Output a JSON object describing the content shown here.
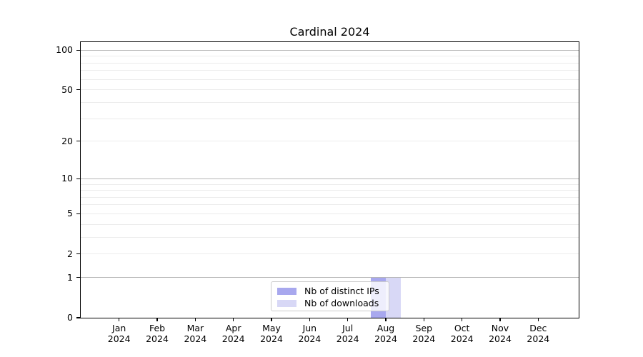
{
  "chart_data": {
    "type": "bar",
    "title": "Cardinal 2024",
    "xlabel": "",
    "ylabel": "",
    "yscale": "log1p",
    "ylim": [
      0,
      115
    ],
    "grid": "horizontal",
    "legend_position": "lower center",
    "ytick_labels": [
      0,
      1,
      2,
      5,
      10,
      20,
      50,
      100
    ],
    "ygrid_major": [
      1,
      10,
      100
    ],
    "ygrid_minor": [
      2,
      3,
      4,
      5,
      6,
      7,
      8,
      9,
      20,
      30,
      40,
      50,
      60,
      70,
      80,
      90
    ],
    "categories": [
      {
        "month": "Jan",
        "year": "2024"
      },
      {
        "month": "Feb",
        "year": "2024"
      },
      {
        "month": "Mar",
        "year": "2024"
      },
      {
        "month": "Apr",
        "year": "2024"
      },
      {
        "month": "May",
        "year": "2024"
      },
      {
        "month": "Jun",
        "year": "2024"
      },
      {
        "month": "Jul",
        "year": "2024"
      },
      {
        "month": "Aug",
        "year": "2024"
      },
      {
        "month": "Sep",
        "year": "2024"
      },
      {
        "month": "Oct",
        "year": "2024"
      },
      {
        "month": "Nov",
        "year": "2024"
      },
      {
        "month": "Dec",
        "year": "2024"
      }
    ],
    "series": [
      {
        "name": "Nb of distinct IPs",
        "color": "#a8a8ee",
        "values": [
          0,
          0,
          0,
          0,
          0,
          0,
          0,
          1,
          0,
          0,
          0,
          0
        ]
      },
      {
        "name": "Nb of downloads",
        "color": "#d8d8f6",
        "values": [
          0,
          0,
          0,
          0,
          0,
          0,
          0,
          1,
          0,
          0,
          0,
          0
        ]
      }
    ]
  }
}
